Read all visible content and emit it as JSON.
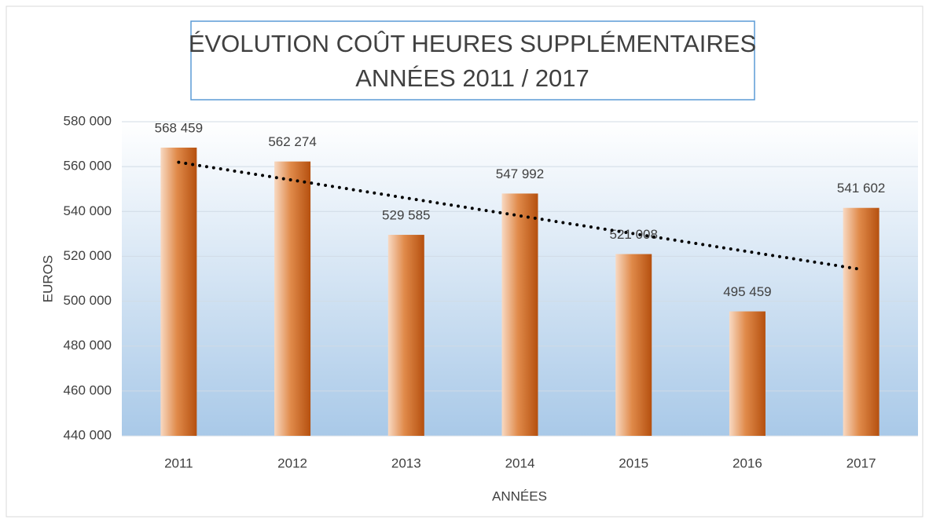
{
  "chart_data": {
    "type": "bar",
    "title": [
      "ÉVOLUTION COÛT HEURES SUPPLÉMENTAIRES",
      "ANNÉES 2011 / 2017"
    ],
    "x_label": "ANNÉES",
    "y_label": "EUROS",
    "categories": [
      "2011",
      "2012",
      "2013",
      "2014",
      "2015",
      "2016",
      "2017"
    ],
    "values": [
      568459,
      562274,
      529585,
      547992,
      521008,
      495459,
      541602
    ],
    "value_labels": [
      "568 459",
      "562 274",
      "529 585",
      "547 992",
      "521 008",
      "495 459",
      "541 602"
    ],
    "color": "#c9611f",
    "ylim": [
      440000,
      580000
    ],
    "yticks": [
      {
        "value": 440000,
        "label": "440 000"
      },
      {
        "value": 460000,
        "label": "460 000"
      },
      {
        "value": 480000,
        "label": "480 000"
      },
      {
        "value": 500000,
        "label": "500 000"
      },
      {
        "value": 520000,
        "label": "520 000"
      },
      {
        "value": 540000,
        "label": "540 000"
      },
      {
        "value": 560000,
        "label": "560 000"
      },
      {
        "value": 580000,
        "label": "580 000"
      }
    ],
    "grid": true,
    "trendline": "linear"
  }
}
